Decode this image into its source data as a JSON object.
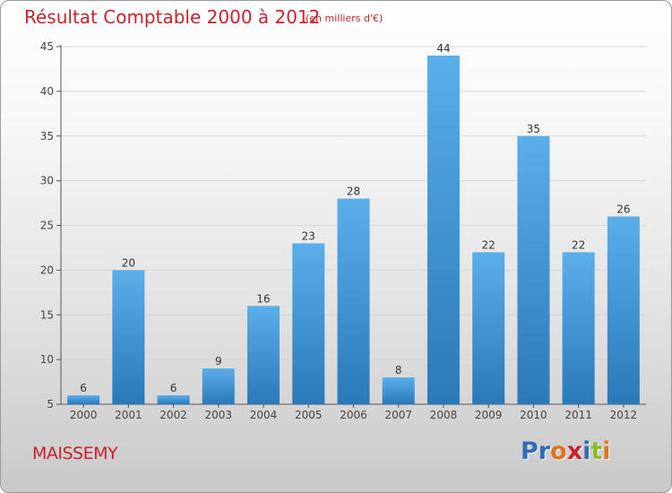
{
  "title": "Résultat Comptable 2000 à 2012",
  "subtitle": "(en milliers d'€)",
  "commune": "MAISSEMY",
  "logo": {
    "text": "Proxiti",
    "colors": [
      "#2f6db5",
      "#2f6db5",
      "#e0731d",
      "#c8232c",
      "#2f6db5",
      "#8dbb2f",
      "#e0731d"
    ]
  },
  "colors": {
    "bar": "#4a9fe0",
    "title": "#c8232c",
    "grid": "#d6d6d6",
    "axis": "#555555"
  },
  "chart_data": {
    "type": "bar",
    "title": "Résultat Comptable 2000 à 2012",
    "xlabel": "",
    "ylabel": "",
    "categories": [
      "2000",
      "2001",
      "2002",
      "2003",
      "2004",
      "2005",
      "2006",
      "2007",
      "2008",
      "2009",
      "2010",
      "2011",
      "2012"
    ],
    "values": [
      6,
      20,
      6,
      9,
      16,
      23,
      28,
      8,
      44,
      22,
      35,
      22,
      26
    ],
    "ylim": [
      5,
      45
    ],
    "yticks": [
      5,
      10,
      15,
      20,
      25,
      30,
      35,
      40,
      45
    ],
    "grid": true
  }
}
